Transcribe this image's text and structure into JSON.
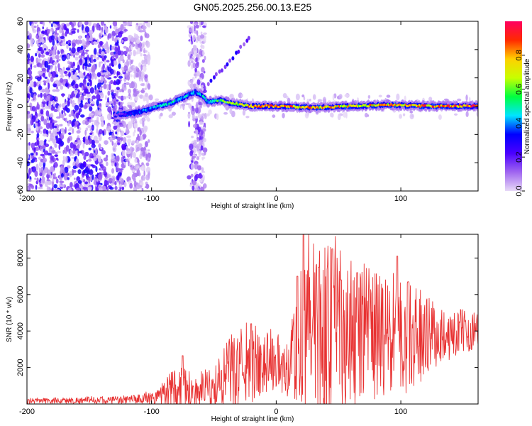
{
  "title": "GN05.2025.256.00.13.E25",
  "chart_data": [
    {
      "type": "heatmap",
      "name": "spectrogram",
      "title": "GN05.2025.256.00.13.E25",
      "xlabel": "Height of straight line (km)",
      "ylabel": "Frequency (Hz)",
      "xlim": [
        -200,
        162
      ],
      "ylim": [
        -60,
        60
      ],
      "xticks": [
        "-200",
        "-100",
        "0",
        "100"
      ],
      "yticks": [
        "60",
        "40",
        "20",
        "0",
        "-20",
        "-40",
        "-60"
      ],
      "colorbar": {
        "label": "Normalized spectral amplitude",
        "range": [
          0,
          1
        ],
        "ticks": [
          "0.0",
          "0.2",
          "0.4",
          "0.6",
          "0.8"
        ],
        "stops": [
          "#e7d9f7",
          "#a066f0",
          "#4b00ff",
          "#0000ff",
          "#00e5ff",
          "#00ff40",
          "#c8ff00",
          "#ffd000",
          "#ff2a00",
          "#ff0060"
        ]
      },
      "ridge": [
        {
          "x": -128,
          "f": -6,
          "a": 0.15
        },
        {
          "x": -115,
          "f": -5,
          "a": 0.35
        },
        {
          "x": -105,
          "f": -3,
          "a": 0.4
        },
        {
          "x": -95,
          "f": 0,
          "a": 0.45
        },
        {
          "x": -85,
          "f": 2,
          "a": 0.5
        },
        {
          "x": -75,
          "f": 6,
          "a": 0.45
        },
        {
          "x": -65,
          "f": 10,
          "a": 0.4
        },
        {
          "x": -60,
          "f": 8,
          "a": 0.45
        },
        {
          "x": -55,
          "f": 3,
          "a": 0.5
        },
        {
          "x": -45,
          "f": 4,
          "a": 0.55
        },
        {
          "x": -35,
          "f": 2,
          "a": 0.65
        },
        {
          "x": -20,
          "f": 0,
          "a": 0.8
        },
        {
          "x": 0,
          "f": 0,
          "a": 0.85
        },
        {
          "x": 30,
          "f": -1,
          "a": 0.8
        },
        {
          "x": 60,
          "f": 0,
          "a": 0.75
        },
        {
          "x": 90,
          "f": 1,
          "a": 0.8
        },
        {
          "x": 120,
          "f": 0,
          "a": 0.85
        },
        {
          "x": 162,
          "f": 0,
          "a": 0.9
        }
      ]
    },
    {
      "type": "line",
      "name": "snr",
      "xlabel": "Height of straight line (km)",
      "ylabel": "SNR (10 * v/v)",
      "xlim": [
        -200,
        162
      ],
      "ylim": [
        0,
        9300
      ],
      "xticks": [
        "-200",
        "-100",
        "0",
        "100"
      ],
      "yticks": [
        "8000",
        "6000",
        "4000",
        "2000"
      ],
      "color": "#e83232",
      "envelope": [
        {
          "x": -200,
          "base": 150,
          "amp": 150
        },
        {
          "x": -120,
          "base": 200,
          "amp": 200
        },
        {
          "x": -100,
          "base": 300,
          "amp": 350
        },
        {
          "x": -90,
          "base": 500,
          "amp": 800
        },
        {
          "x": -75,
          "base": 800,
          "amp": 1500
        },
        {
          "x": -65,
          "base": 500,
          "amp": 900
        },
        {
          "x": -50,
          "base": 700,
          "amp": 1200
        },
        {
          "x": -35,
          "base": 1500,
          "amp": 2200
        },
        {
          "x": -20,
          "base": 2000,
          "amp": 2200
        },
        {
          "x": -5,
          "base": 2300,
          "amp": 1800
        },
        {
          "x": 10,
          "base": 1500,
          "amp": 1500
        },
        {
          "x": 22,
          "base": 3500,
          "amp": 5500
        },
        {
          "x": 45,
          "base": 3300,
          "amp": 5000
        },
        {
          "x": 70,
          "base": 3300,
          "amp": 3800
        },
        {
          "x": 100,
          "base": 3300,
          "amp": 3500
        },
        {
          "x": 130,
          "base": 3600,
          "amp": 1600
        },
        {
          "x": 162,
          "base": 4000,
          "amp": 1000
        }
      ],
      "peaks": [
        {
          "x": -75,
          "y": 2650
        },
        {
          "x": -20,
          "y": 4400
        },
        {
          "x": 17,
          "y": 7000
        },
        {
          "x": 22,
          "y": 9300
        },
        {
          "x": 34,
          "y": 7500
        },
        {
          "x": 45,
          "y": 8500
        },
        {
          "x": 52,
          "y": 6800
        },
        {
          "x": 65,
          "y": 7200
        },
        {
          "x": 97,
          "y": 8100
        },
        {
          "x": 106,
          "y": 6700
        }
      ]
    }
  ]
}
